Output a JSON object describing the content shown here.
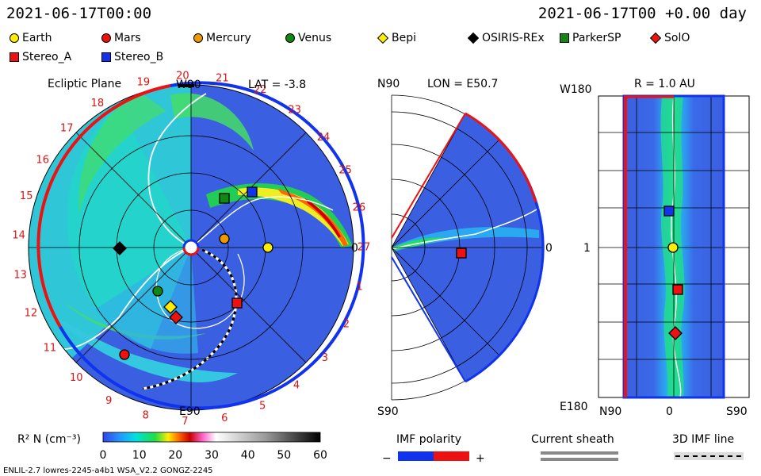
{
  "header": {
    "left_time": "2021-06-17T00:00",
    "right_time": "2021-06-17T00 +0.00 day"
  },
  "legend": [
    {
      "name": "Earth",
      "color": "#ffee00",
      "shape": "circle"
    },
    {
      "name": "Mars",
      "color": "#ee1111",
      "shape": "circle"
    },
    {
      "name": "Mercury",
      "color": "#ee9900",
      "shape": "circle"
    },
    {
      "name": "Venus",
      "color": "#118811",
      "shape": "circle"
    },
    {
      "name": "Bepi",
      "color": "#ffee00",
      "shape": "diamond"
    },
    {
      "name": "OSIRIS-REx",
      "color": "#000000",
      "shape": "diamond"
    },
    {
      "name": "ParkerSP",
      "color": "#118811",
      "shape": "square"
    },
    {
      "name": "SolO",
      "color": "#ee1111",
      "shape": "diamond"
    },
    {
      "name": "Stereo_A",
      "color": "#ee1111",
      "shape": "square"
    },
    {
      "name": "Stereo_B",
      "color": "#1133ee",
      "shape": "square"
    }
  ],
  "panels": {
    "ecliptic": {
      "title": "Ecliptic Plane",
      "top_label": "W90",
      "bottom_label": "E90",
      "right_label": "0",
      "lat_label": "LAT = -3.8",
      "carrington": [
        "19",
        "20",
        "21",
        "22",
        "23",
        "24",
        "25",
        "26",
        "27",
        "1",
        "2",
        "3",
        "4",
        "5",
        "6",
        "7",
        "8",
        "9",
        "10",
        "11",
        "12",
        "13",
        "14",
        "15",
        "16",
        "17",
        "18"
      ]
    },
    "meridional": {
      "lon_label": "LON = E50.7",
      "top_label": "N90",
      "bottom_label": "S90",
      "right_label": "0"
    },
    "radial": {
      "title": "R = 1.0 AU",
      "left_top": "W180",
      "left_mid": "1",
      "left_bottom": "E180",
      "bottom_left": "N90",
      "bottom_mid": "0",
      "bottom_right": "S90"
    }
  },
  "colorbar": {
    "label": "R² N (cm⁻³)",
    "ticks": [
      "0",
      "10",
      "20",
      "30",
      "40",
      "50",
      "60"
    ]
  },
  "imf": {
    "title": "IMF polarity",
    "minus": "−",
    "plus": "+"
  },
  "current_sheath": {
    "title": "Current sheath"
  },
  "imf_line": {
    "title": "3D IMF line"
  },
  "footer": "ENLIL-2.7 lowres-2245-a4b1 WSA_V2.2 GONGZ-2245",
  "colors": {
    "polarity_neg": "#1133ee",
    "polarity_pos": "#ee1111",
    "bg_blue": "#3a5fe0"
  },
  "chart_data": {
    "type": "heatmap",
    "title": "",
    "quantity": "R² N (cm⁻³)",
    "range": [
      0,
      60
    ],
    "bodies": [
      "Earth",
      "Mars",
      "Mercury",
      "Venus",
      "Bepi",
      "OSIRIS-REx",
      "ParkerSP",
      "SolO",
      "Stereo_A",
      "Stereo_B"
    ]
  }
}
